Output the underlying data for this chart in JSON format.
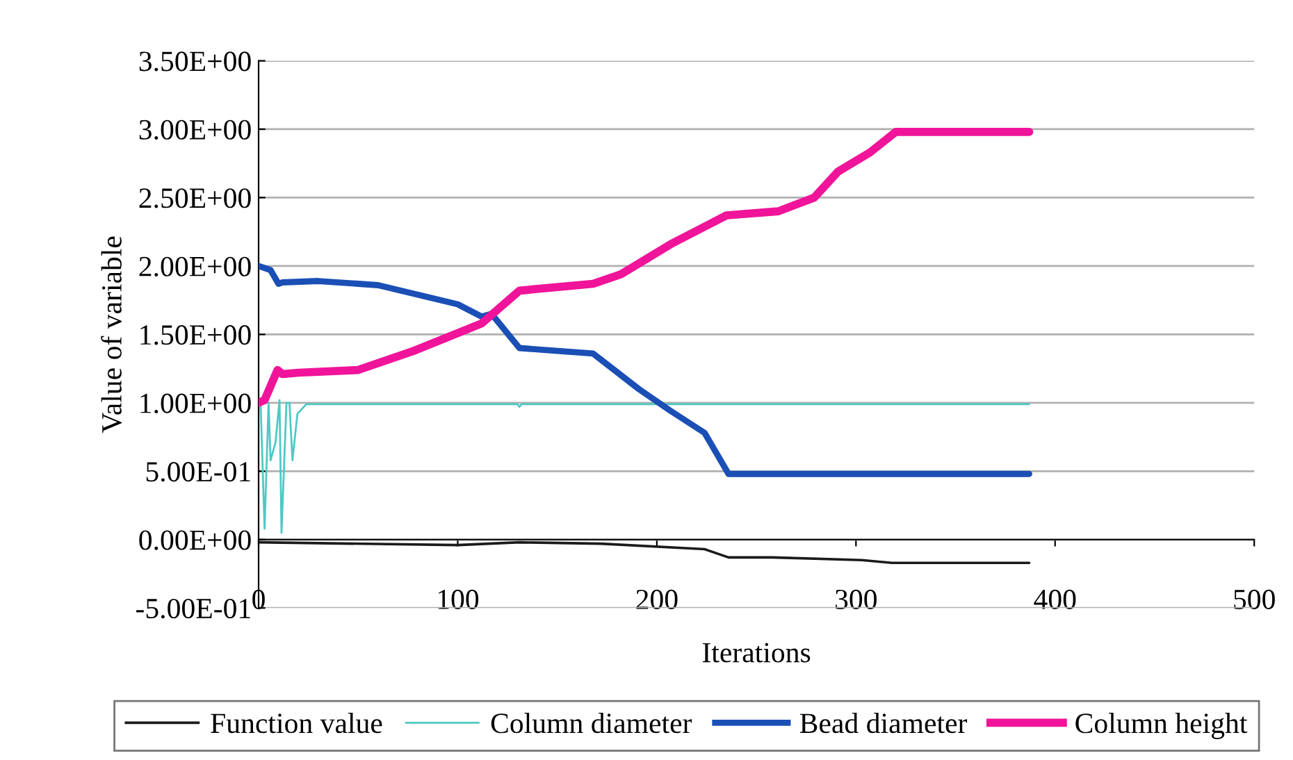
{
  "chart_data": {
    "type": "line",
    "xlabel": "Iterations",
    "ylabel": "Value of variable",
    "xlim": [
      0,
      500
    ],
    "xticks": [
      0,
      100,
      200,
      300,
      400,
      500
    ],
    "ylim": [
      -0.5,
      3.5
    ],
    "yticks": [
      {
        "value": -0.5,
        "label": "-5.00E-01"
      },
      {
        "value": 0,
        "label": "0.00E+00"
      },
      {
        "value": 0.5,
        "label": "5.00E-01"
      },
      {
        "value": 1,
        "label": "1.00E+00"
      },
      {
        "value": 1.5,
        "label": "1.50E+00"
      },
      {
        "value": 2,
        "label": "2.00E+00"
      },
      {
        "value": 2.5,
        "label": "2.50E+00"
      },
      {
        "value": 3,
        "label": "3.00E+00"
      },
      {
        "value": 3.5,
        "label": "3.50E+00"
      }
    ],
    "grid": "y",
    "legend": "bottom",
    "marker": "none",
    "line_style": "solid",
    "series": [
      {
        "name": "Function value",
        "color": "#1a1a1a",
        "x": [
          0,
          100,
          131,
          172,
          224,
          236,
          258,
          303,
          318,
          387
        ],
        "values": [
          -0.02,
          -0.04,
          -0.02,
          -0.03,
          -0.07,
          -0.13,
          -0.13,
          -0.15,
          -0.17,
          -0.17
        ]
      },
      {
        "name": "Column diameter",
        "color": "#4fc9c4",
        "x": [
          0,
          1,
          3,
          5,
          6,
          8.5,
          10.5,
          11.5,
          14,
          15.5,
          17,
          19.5,
          24,
          130,
          131,
          132,
          387
        ],
        "values": [
          1.0,
          1.0,
          0.08,
          1.0,
          0.58,
          0.71,
          1.02,
          0.05,
          1.0,
          1.0,
          0.58,
          0.92,
          0.99,
          0.99,
          0.97,
          0.99,
          0.99
        ]
      },
      {
        "name": "Bead diameter",
        "color": "#1a4fb5",
        "x": [
          0,
          6,
          10,
          12,
          30,
          60,
          80,
          100,
          112,
          117,
          131,
          168,
          191,
          207,
          224,
          236,
          387
        ],
        "values": [
          2.0,
          1.97,
          1.87,
          1.88,
          1.89,
          1.86,
          1.79,
          1.72,
          1.63,
          1.65,
          1.4,
          1.36,
          1.1,
          0.94,
          0.78,
          0.48,
          0.48
        ]
      },
      {
        "name": "Column height",
        "color": "#f0149a",
        "x": [
          0,
          3,
          9.5,
          12,
          20,
          50,
          78,
          112,
          131,
          168,
          182,
          207,
          235,
          261,
          279,
          291,
          307,
          320,
          387
        ],
        "values": [
          1.0,
          1.02,
          1.24,
          1.21,
          1.22,
          1.24,
          1.38,
          1.58,
          1.82,
          1.87,
          1.94,
          2.16,
          2.37,
          2.4,
          2.5,
          2.69,
          2.83,
          2.98,
          2.98
        ]
      }
    ]
  }
}
